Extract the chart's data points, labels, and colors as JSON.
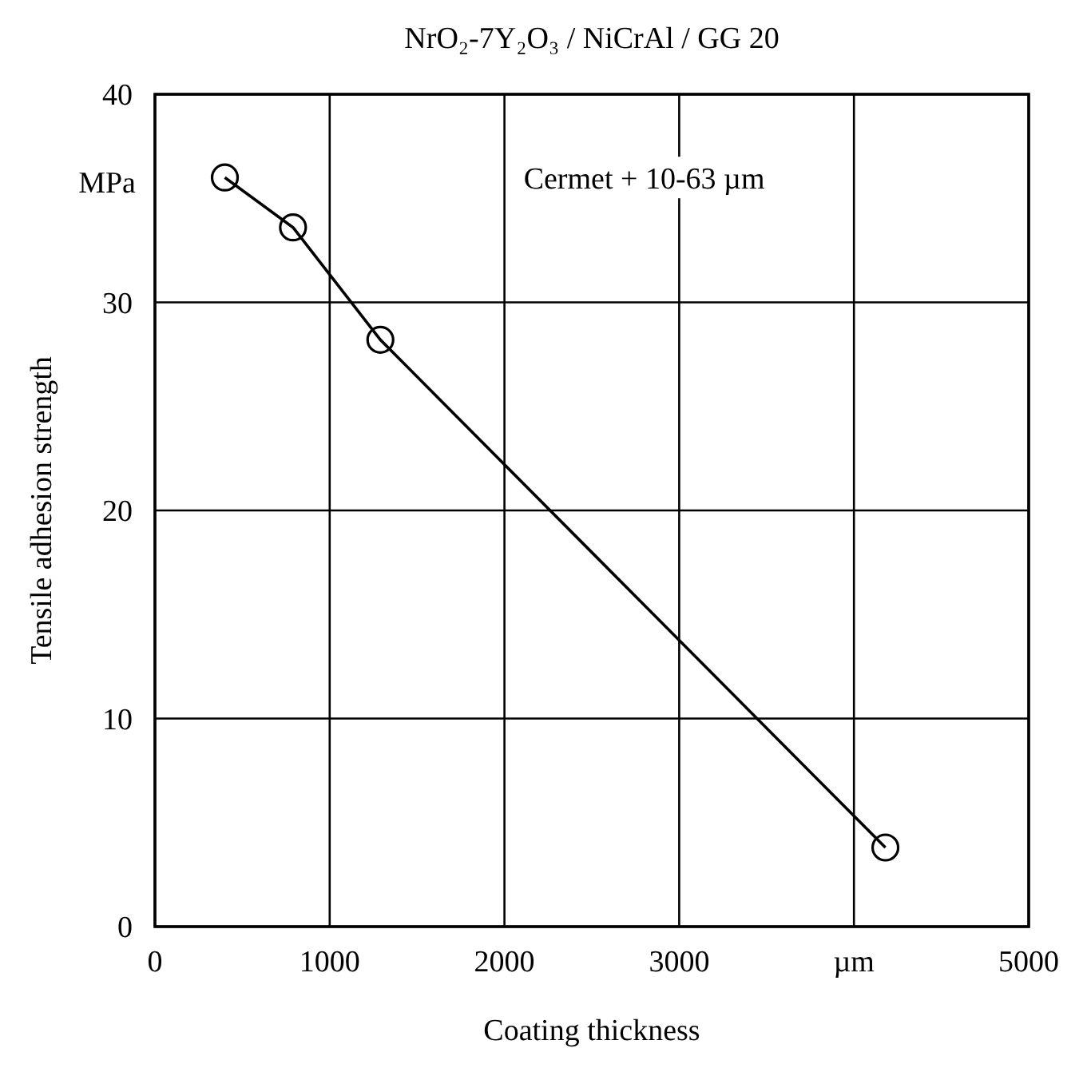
{
  "chart_data": {
    "type": "line",
    "title": "NrO₂-7Y₂O₃ / NiCrAl / GG 20",
    "xlabel": "Coating thickness",
    "ylabel": "Tensile adhesion strength",
    "annotations": [
      "Cermet + 10-63 µm",
      "MPa"
    ],
    "x": [
      400,
      790,
      1290,
      4180
    ],
    "series": [
      {
        "color": "#000000",
        "values": [
          36,
          33.6,
          28.2,
          3.8
        ]
      }
    ],
    "xlim": [
      0,
      5000
    ],
    "xticks": [
      0,
      1000,
      2000,
      3000,
      {
        "value": 4000,
        "label": "µm"
      },
      5000
    ],
    "ylim": [
      0,
      40
    ],
    "yticks": [
      0,
      10,
      20,
      30,
      40
    ],
    "grid": true,
    "marker": "circle",
    "line_style": "solid"
  }
}
